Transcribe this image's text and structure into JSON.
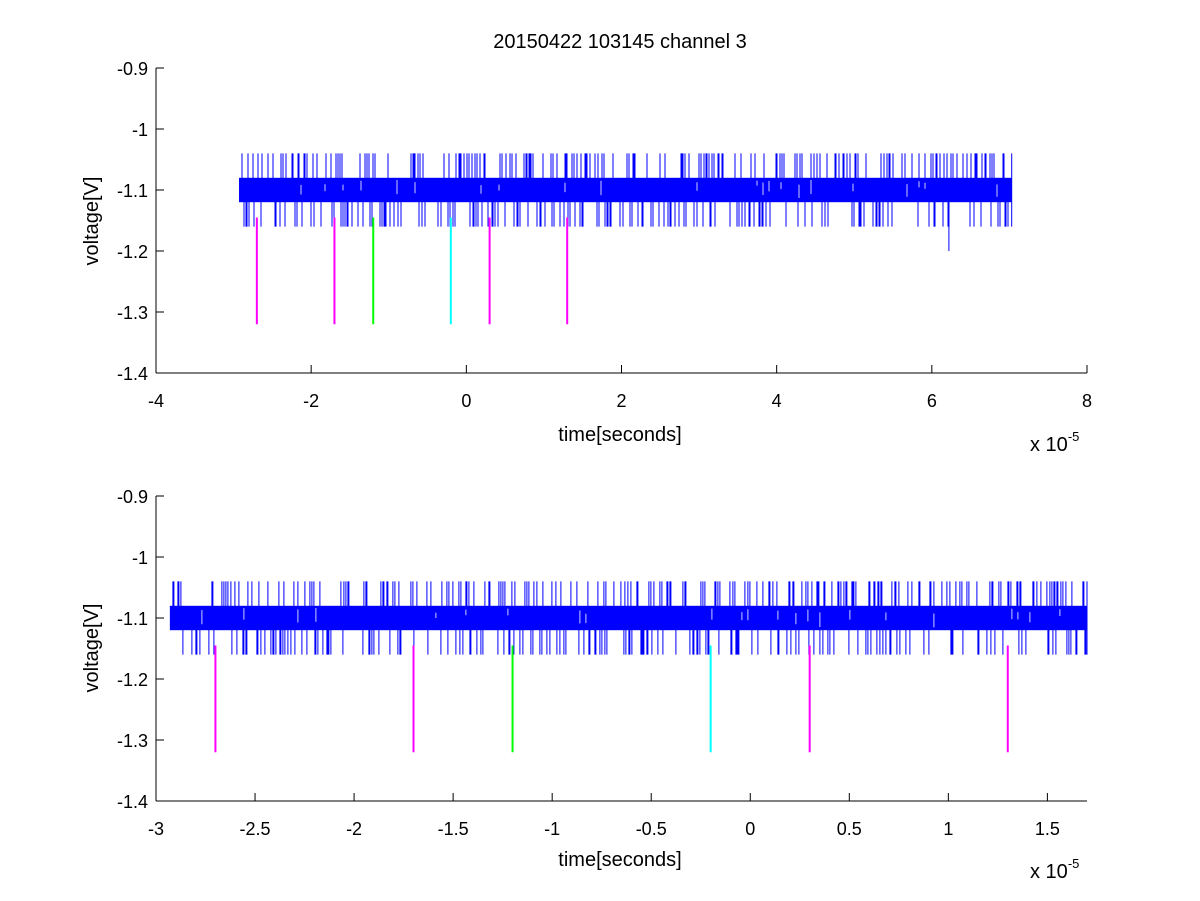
{
  "figure_title": "20150422 103145 channel 3",
  "colors": {
    "signal": "#0000ff",
    "marker_magenta": "#ff00ff",
    "marker_green": "#00ff00",
    "marker_cyan": "#00ffff",
    "axes": "#000000",
    "background": "#ffffff"
  },
  "chart_data": [
    {
      "type": "line",
      "title": "20150422 103145 channel 3",
      "xlabel": "time[seconds]",
      "ylabel": "voltage[V]",
      "x_multiplier_text": "x 10",
      "x_multiplier_exponent": "-5",
      "xlim": [
        -4,
        8
      ],
      "ylim": [
        -1.4,
        -0.9
      ],
      "xticks": [
        -4,
        -2,
        0,
        2,
        4,
        6,
        8
      ],
      "xtick_labels": [
        "-4",
        "-2",
        "0",
        "2",
        "4",
        "6",
        "8"
      ],
      "yticks": [
        -1.4,
        -1.3,
        -1.2,
        -1.1,
        -1.0,
        -0.9
      ],
      "ytick_labels": [
        "-1.4",
        "-1.3",
        "-1.2",
        "-1.1",
        "-1",
        "-0.9"
      ],
      "grid": false,
      "series": [
        {
          "kind": "noisy-signal",
          "x_range": [
            -2.93,
            7.03
          ],
          "baseline_low": -1.12,
          "baseline_high": -1.08,
          "spike_high": -1.04,
          "spike_low": -1.16,
          "outliers": [
            {
              "x": 6.22,
              "y": -1.2
            }
          ]
        }
      ],
      "markers": [
        {
          "x": -2.7,
          "y_top": -1.145,
          "y_bottom": -1.32,
          "color": "#ff00ff"
        },
        {
          "x": -1.7,
          "y_top": -1.145,
          "y_bottom": -1.32,
          "color": "#ff00ff"
        },
        {
          "x": -1.2,
          "y_top": -1.145,
          "y_bottom": -1.32,
          "color": "#00ff00"
        },
        {
          "x": -0.2,
          "y_top": -1.145,
          "y_bottom": -1.32,
          "color": "#00ffff"
        },
        {
          "x": 0.3,
          "y_top": -1.145,
          "y_bottom": -1.32,
          "color": "#ff00ff"
        },
        {
          "x": 1.3,
          "y_top": -1.145,
          "y_bottom": -1.32,
          "color": "#ff00ff"
        }
      ]
    },
    {
      "type": "line",
      "title": "",
      "xlabel": "time[seconds]",
      "ylabel": "voltage[V]",
      "x_multiplier_text": "x 10",
      "x_multiplier_exponent": "-5",
      "xlim": [
        -3.0,
        1.7
      ],
      "ylim": [
        -1.4,
        -0.9
      ],
      "xticks": [
        -3,
        -2.5,
        -2,
        -1.5,
        -1,
        -0.5,
        0,
        0.5,
        1,
        1.5
      ],
      "xtick_labels": [
        "-3",
        "-2.5",
        "-2",
        "-1.5",
        "-1",
        "-0.5",
        "0",
        "0.5",
        "1",
        "1.5"
      ],
      "yticks": [
        -1.4,
        -1.3,
        -1.2,
        -1.1,
        -1.0,
        -0.9
      ],
      "ytick_labels": [
        "-1.4",
        "-1.3",
        "-1.2",
        "-1.1",
        "-1",
        "-0.9"
      ],
      "grid": false,
      "series": [
        {
          "kind": "noisy-signal",
          "x_range": [
            -2.93,
            1.7
          ],
          "baseline_low": -1.12,
          "baseline_high": -1.08,
          "spike_high": -1.04,
          "spike_low": -1.16,
          "outliers": []
        }
      ],
      "markers": [
        {
          "x": -2.7,
          "y_top": -1.145,
          "y_bottom": -1.32,
          "color": "#ff00ff"
        },
        {
          "x": -1.7,
          "y_top": -1.145,
          "y_bottom": -1.32,
          "color": "#ff00ff"
        },
        {
          "x": -1.2,
          "y_top": -1.145,
          "y_bottom": -1.32,
          "color": "#00ff00"
        },
        {
          "x": -0.2,
          "y_top": -1.145,
          "y_bottom": -1.32,
          "color": "#00ffff"
        },
        {
          "x": 0.3,
          "y_top": -1.145,
          "y_bottom": -1.32,
          "color": "#ff00ff"
        },
        {
          "x": 1.3,
          "y_top": -1.145,
          "y_bottom": -1.32,
          "color": "#ff00ff"
        }
      ]
    }
  ]
}
